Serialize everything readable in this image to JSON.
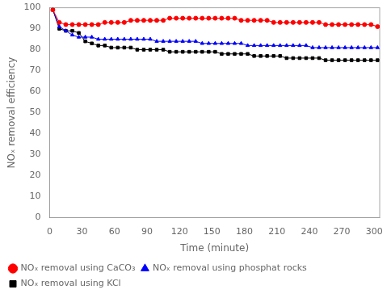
{
  "chart_data": {
    "type": "line",
    "title": "",
    "x_label": "Time (minute)",
    "y_label": "NOₓ removal efficiency",
    "xlim": [
      0,
      305
    ],
    "ylim": [
      0,
      100
    ],
    "xticks": [
      0,
      30,
      60,
      90,
      120,
      150,
      180,
      210,
      240,
      270,
      300
    ],
    "yticks": [
      0,
      10,
      20,
      30,
      40,
      50,
      60,
      70,
      80,
      90,
      100
    ],
    "x": [
      3,
      9,
      15,
      21,
      27,
      33,
      39,
      45,
      51,
      57,
      63,
      69,
      75,
      81,
      87,
      93,
      99,
      105,
      111,
      117,
      123,
      129,
      135,
      141,
      147,
      153,
      159,
      165,
      171,
      177,
      183,
      189,
      195,
      201,
      207,
      213,
      219,
      225,
      231,
      237,
      243,
      249,
      255,
      261,
      267,
      273,
      279,
      285,
      291,
      297,
      303
    ],
    "series": [
      {
        "name": "NOₓ removal using CaCO₃",
        "color": "#ff0000",
        "marker": "circle",
        "values": [
          99,
          93,
          92,
          92,
          92,
          92,
          92,
          92,
          93,
          93,
          93,
          93,
          94,
          94,
          94,
          94,
          94,
          94,
          95,
          95,
          95,
          95,
          95,
          95,
          95,
          95,
          95,
          95,
          95,
          94,
          94,
          94,
          94,
          94,
          93,
          93,
          93,
          93,
          93,
          93,
          93,
          93,
          92,
          92,
          92,
          92,
          92,
          92,
          92,
          92,
          91
        ]
      },
      {
        "name": "NOₓ removal using phosphat rocks",
        "color": "#0000ff",
        "marker": "triangle",
        "values": [
          99,
          91,
          89,
          87,
          86,
          86,
          86,
          85,
          85,
          85,
          85,
          85,
          85,
          85,
          85,
          85,
          84,
          84,
          84,
          84,
          84,
          84,
          84,
          83,
          83,
          83,
          83,
          83,
          83,
          83,
          82,
          82,
          82,
          82,
          82,
          82,
          82,
          82,
          82,
          82,
          81,
          81,
          81,
          81,
          81,
          81,
          81,
          81,
          81,
          81,
          81
        ]
      },
      {
        "name": "NOₓ removal using KCl",
        "color": "#000000",
        "marker": "square",
        "values": [
          99,
          90,
          89,
          89,
          88,
          84,
          83,
          82,
          82,
          81,
          81,
          81,
          81,
          80,
          80,
          80,
          80,
          80,
          79,
          79,
          79,
          79,
          79,
          79,
          79,
          79,
          78,
          78,
          78,
          78,
          78,
          77,
          77,
          77,
          77,
          77,
          76,
          76,
          76,
          76,
          76,
          76,
          75,
          75,
          75,
          75,
          75,
          75,
          75,
          75,
          75
        ]
      }
    ],
    "legend": "lower left",
    "grid": false
  }
}
